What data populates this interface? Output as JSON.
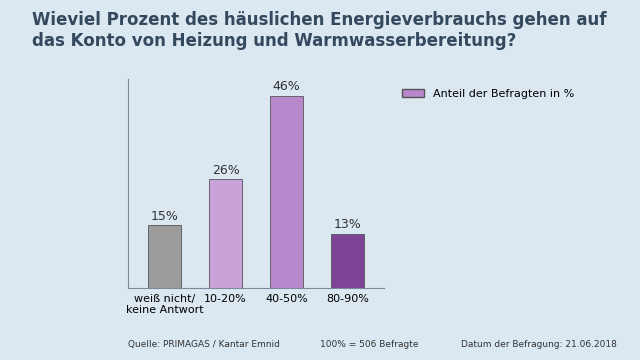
{
  "chart_data": {
    "type": "bar",
    "title": "Wieviel Prozent des häuslichen Energieverbrauchs gehen auf das Konto von Heizung und Warmwasserbereitung?",
    "categories": [
      "weiß nicht/\nkeine Antwort",
      "10-20%",
      "40-50%",
      "80-90%"
    ],
    "series": [
      {
        "name": "Anteil der Befragten in %",
        "values": [
          15,
          26,
          46,
          13
        ],
        "value_labels": [
          "15%",
          "26%",
          "46%",
          "13%"
        ],
        "colors": [
          "#9c9c9c",
          "#c8a2d8",
          "#b887cc",
          "#7e4496"
        ]
      }
    ],
    "ylim": [
      0,
      50
    ],
    "tick_labels": "x",
    "data_labels": true,
    "legend": "upper left",
    "grid": false,
    "annotations": [
      "Quelle: PRIMAGAS / Kantar Emnid",
      "100% = 506 Befragte",
      "Datum der Befragung: 21.06.2018"
    ]
  }
}
